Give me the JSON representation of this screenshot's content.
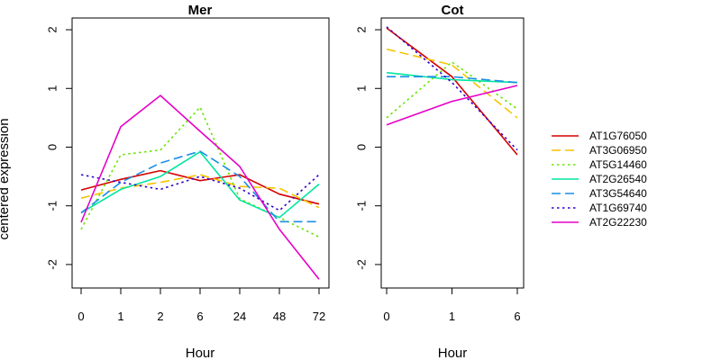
{
  "chart_data": {
    "type": "line",
    "ylabel": "centered expression",
    "legend_placement": "right",
    "grid": false,
    "series_styles": [
      {
        "name": "AT1G76050",
        "color": "#d40000",
        "dash": "solid"
      },
      {
        "name": "AT3G06950",
        "color": "#f5c400",
        "dash": "dashed"
      },
      {
        "name": "AT5G14460",
        "color": "#66e600",
        "dash": "dotted"
      },
      {
        "name": "AT2G26540",
        "color": "#00e6a0",
        "dash": "solid"
      },
      {
        "name": "AT3G54640",
        "color": "#1a8fe6",
        "dash": "dashed"
      },
      {
        "name": "AT1G69740",
        "color": "#3300cc",
        "dash": "dotted"
      },
      {
        "name": "AT2G22230",
        "color": "#e600c8",
        "dash": "solid"
      }
    ],
    "panels": [
      {
        "title": "Mer",
        "xlabel": "Hour",
        "categories": [
          "0",
          "1",
          "2",
          "6",
          "24",
          "48",
          "72"
        ],
        "ylim": [
          -2.4,
          2.2
        ],
        "yticks": [
          -2,
          -1,
          0,
          1,
          2
        ],
        "series": [
          {
            "name": "AT1G76050",
            "values": [
              -0.73,
              -0.55,
              -0.4,
              -0.57,
              -0.47,
              -0.8,
              -0.97
            ]
          },
          {
            "name": "AT3G06950",
            "values": [
              -0.87,
              -0.7,
              -0.6,
              -0.47,
              -0.67,
              -0.7,
              -1.03
            ]
          },
          {
            "name": "AT5G14460",
            "values": [
              -1.4,
              -0.13,
              -0.05,
              0.68,
              -0.88,
              -1.2,
              -1.53
            ]
          },
          {
            "name": "AT2G26540",
            "values": [
              -1.12,
              -0.72,
              -0.5,
              -0.08,
              -0.9,
              -1.2,
              -0.63
            ]
          },
          {
            "name": "AT3G54640",
            "values": [
              -1.12,
              -0.6,
              -0.27,
              -0.07,
              -0.5,
              -1.27,
              -1.27
            ]
          },
          {
            "name": "AT1G69740",
            "values": [
              -0.47,
              -0.6,
              -0.72,
              -0.5,
              -0.7,
              -1.08,
              -0.47
            ]
          },
          {
            "name": "AT2G22230",
            "values": [
              -1.28,
              0.35,
              0.88,
              0.27,
              -0.33,
              -1.4,
              -2.25
            ]
          }
        ]
      },
      {
        "title": "Cot",
        "xlabel": "Hour",
        "categories": [
          "0",
          "1",
          "6"
        ],
        "ylim": [
          -2.4,
          2.2
        ],
        "yticks": [
          -2,
          -1,
          0,
          1,
          2
        ],
        "series": [
          {
            "name": "AT1G76050",
            "values": [
              2.03,
              1.2,
              -0.13
            ]
          },
          {
            "name": "AT3G06950",
            "values": [
              1.67,
              1.4,
              0.5
            ]
          },
          {
            "name": "AT5G14460",
            "values": [
              0.5,
              1.45,
              0.65
            ]
          },
          {
            "name": "AT2G26540",
            "values": [
              1.27,
              1.15,
              1.1
            ]
          },
          {
            "name": "AT3G54640",
            "values": [
              1.2,
              1.2,
              1.1
            ]
          },
          {
            "name": "AT1G69740",
            "values": [
              2.05,
              1.1,
              -0.05
            ]
          },
          {
            "name": "AT2G22230",
            "values": [
              0.38,
              0.78,
              1.05
            ]
          }
        ]
      }
    ]
  }
}
